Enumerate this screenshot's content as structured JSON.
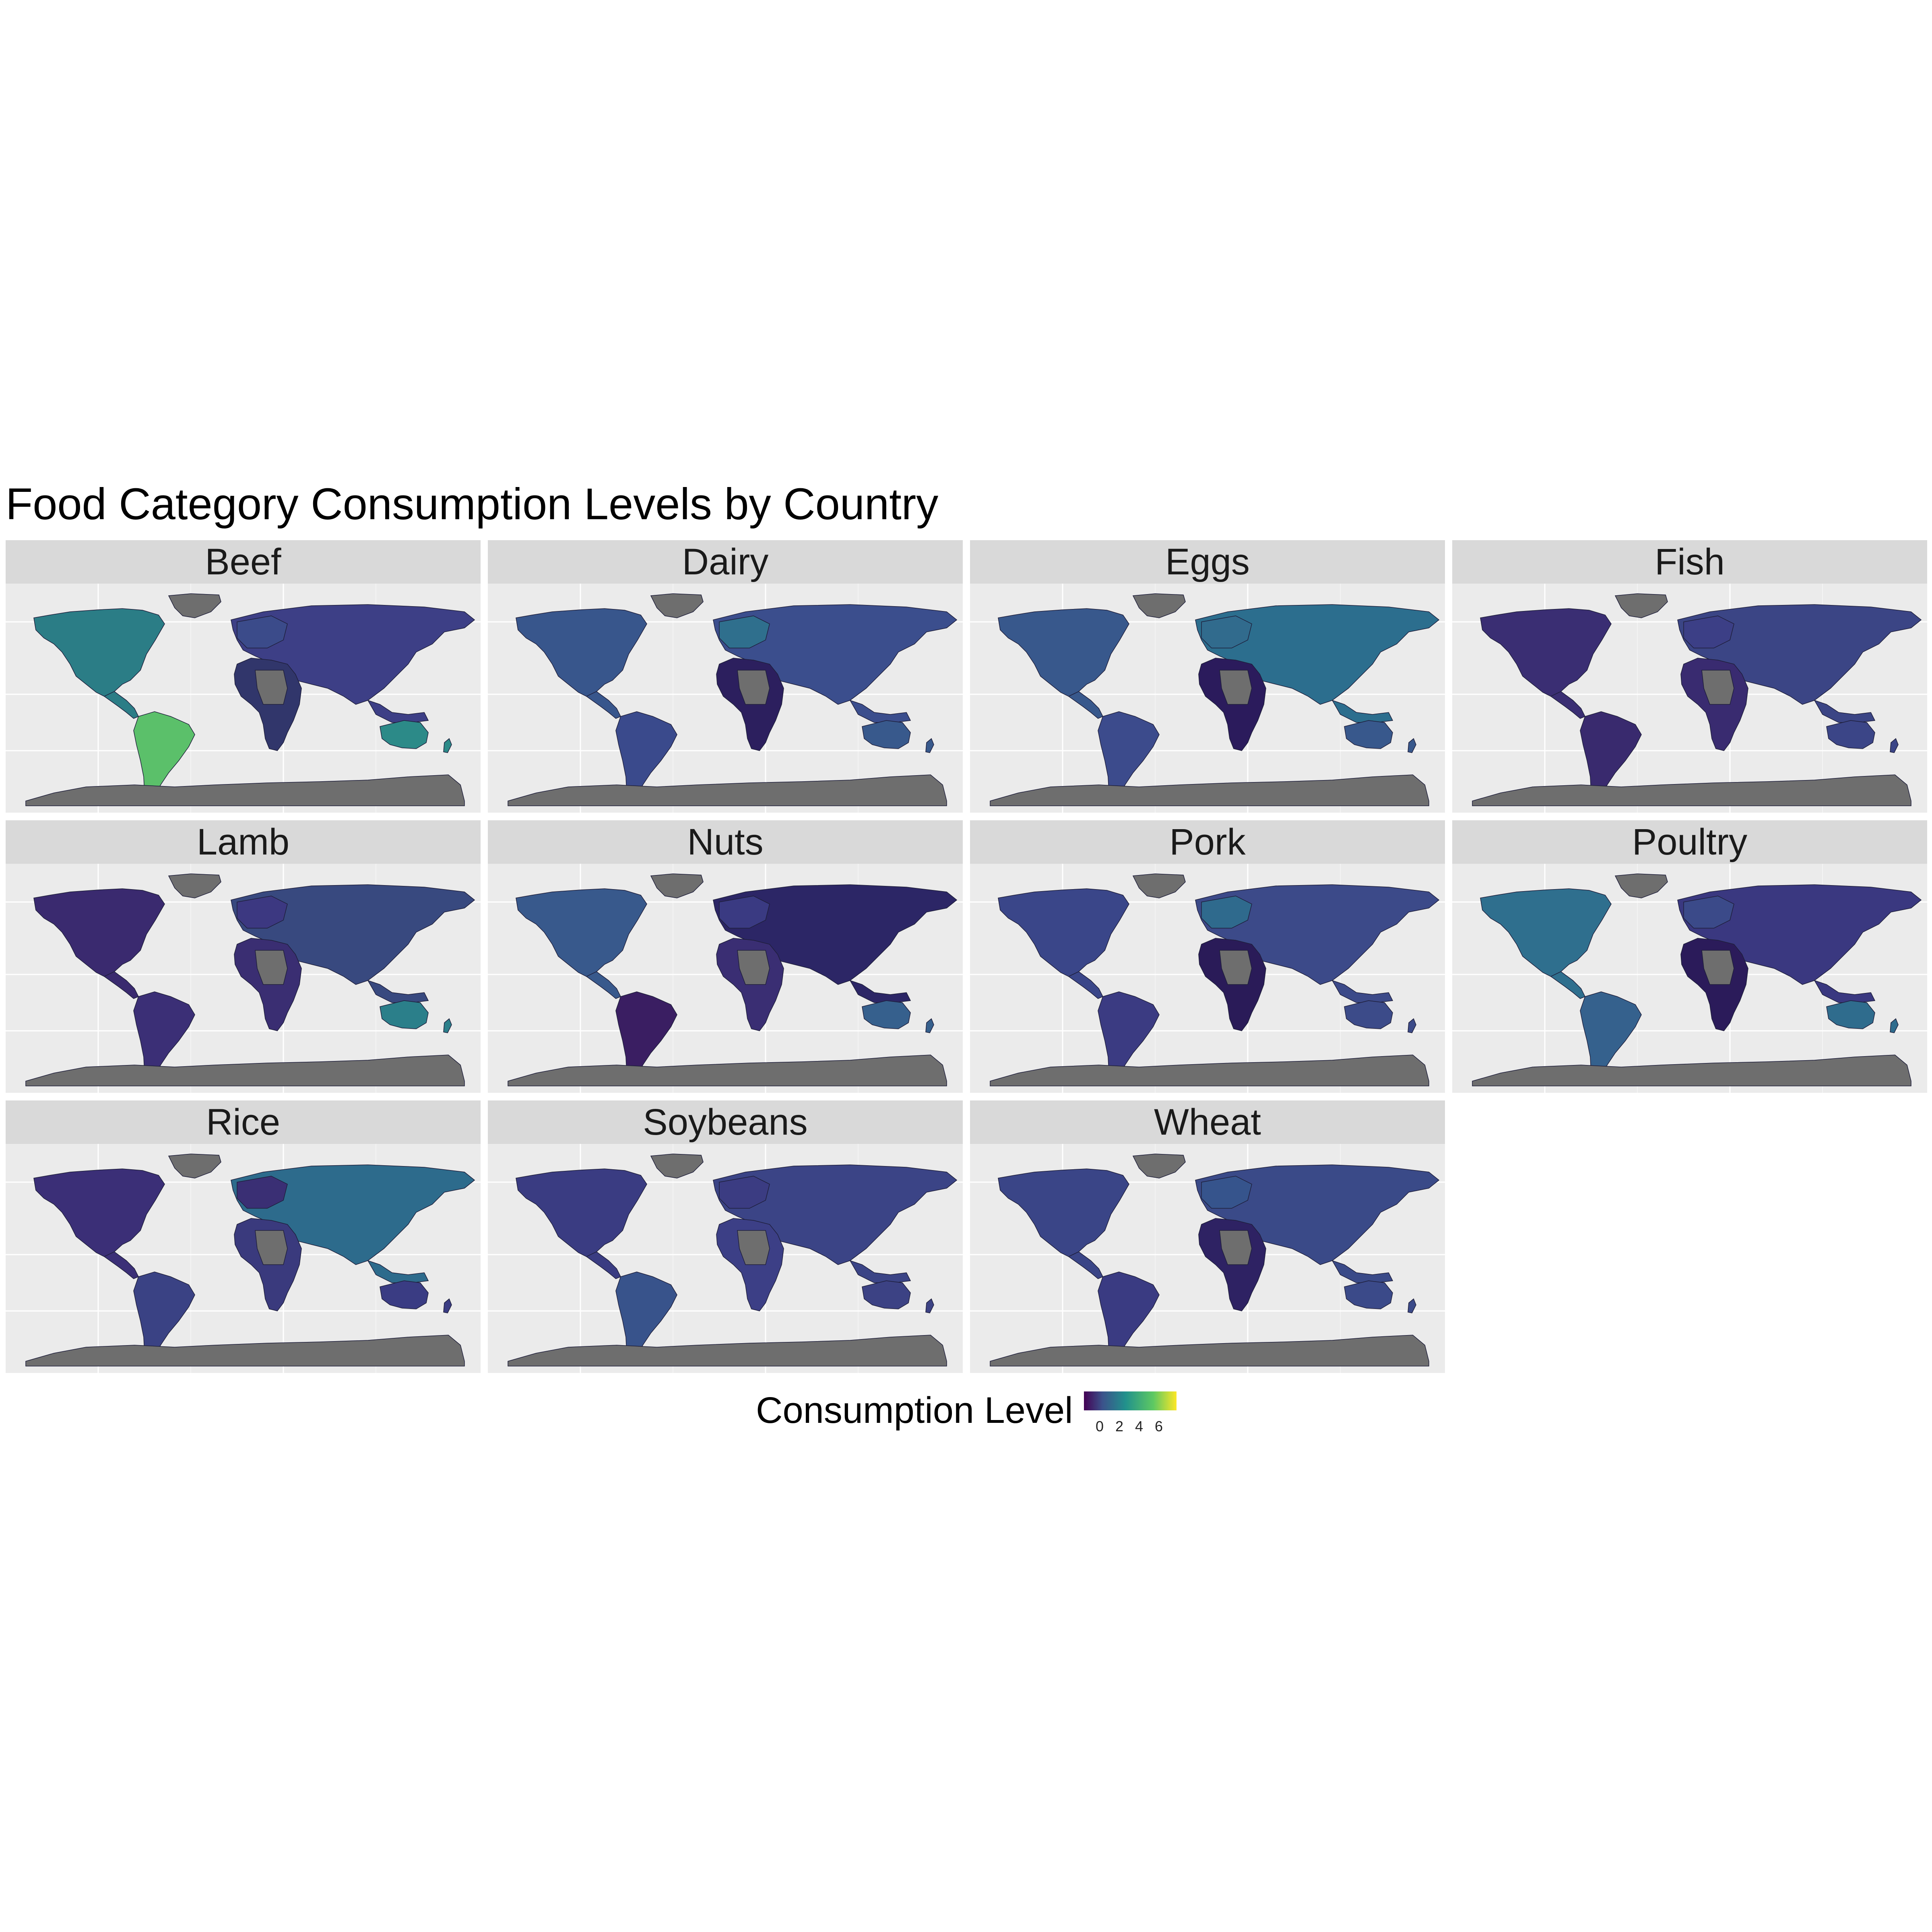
{
  "title": "Food Category Consumption Levels by Country",
  "facets": [
    {
      "label": "Beef",
      "americas": "#2b7d86",
      "southAmerica": "#5bc06a",
      "europe": "#3b4b8a",
      "asia": "#3d3f86",
      "africa": "#31366b",
      "oceania": "#2c8a88"
    },
    {
      "label": "Dairy",
      "americas": "#38568c",
      "southAmerica": "#3a4a8c",
      "europe": "#2f6f8d",
      "asia": "#3b4e8d",
      "africa": "#2c1f5e",
      "oceania": "#38598c"
    },
    {
      "label": "Eggs",
      "americas": "#38588c",
      "southAmerica": "#3c4b8c",
      "europe": "#316b8d",
      "asia": "#2c6e8e",
      "africa": "#2b1b5c",
      "oceania": "#38588c"
    },
    {
      "label": "Fish",
      "americas": "#3a2e73",
      "southAmerica": "#392a6e",
      "europe": "#3c3f86",
      "asia": "#3b4585",
      "africa": "#392b70",
      "oceania": "#3b4587"
    },
    {
      "label": "Lamb",
      "americas": "#3a2a6f",
      "southAmerica": "#3b2f76",
      "europe": "#3c3881",
      "asia": "#38497f",
      "africa": "#3a2e72",
      "oceania": "#2b7f8a"
    },
    {
      "label": "Nuts",
      "americas": "#38598c",
      "southAmerica": "#3a1e62",
      "europe": "#3a3a82",
      "asia": "#2c2666",
      "africa": "#3a2e73",
      "oceania": "#36608d"
    },
    {
      "label": "Pork",
      "americas": "#3a4689",
      "southAmerica": "#3b3b82",
      "europe": "#2f6a8d",
      "asia": "#3c4a89",
      "africa": "#2a1b58",
      "oceania": "#3c4b89"
    },
    {
      "label": "Poultry",
      "americas": "#2f6f8e",
      "southAmerica": "#35618d",
      "europe": "#3b4a89",
      "asia": "#3a3880",
      "africa": "#2b1b5a",
      "oceania": "#2f6c8d"
    },
    {
      "label": "Rice",
      "americas": "#3b2f77",
      "southAmerica": "#3a4284",
      "europe": "#3a2f74",
      "asia": "#2d6b8c",
      "africa": "#3a3a7d",
      "oceania": "#3a3c83"
    },
    {
      "label": "Soybeans",
      "americas": "#3a3c82",
      "southAmerica": "#38538b",
      "europe": "#3b3c82",
      "asia": "#3b4486",
      "africa": "#3c3f86",
      "oceania": "#3c4284"
    },
    {
      "label": "Wheat",
      "americas": "#3a4587",
      "southAmerica": "#3a3b82",
      "europe": "#36548c",
      "asia": "#3a4a88",
      "africa": "#2e2263",
      "oceania": "#3b4a89"
    }
  ],
  "missing_color": "#6e6e6e",
  "legend": {
    "title": "Consumption Level",
    "ticks": [
      "0",
      "2",
      "4",
      "6"
    ],
    "scale": "viridis",
    "range": [
      0,
      7
    ]
  }
}
